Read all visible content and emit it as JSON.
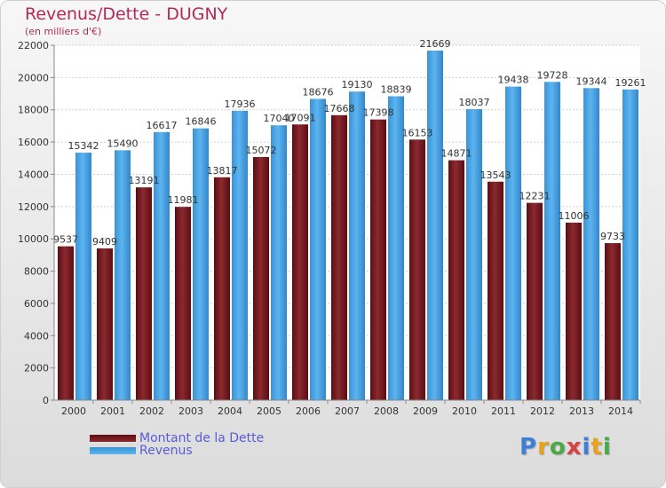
{
  "header": {
    "title": "Revenus/Dette - DUGNY",
    "subtitle": "(en milliers d'€)"
  },
  "logo": {
    "text": "Proxiti",
    "colors": [
      "#3d7fd6",
      "#e8a21c",
      "#4aa848",
      "#d94040",
      "#3d7fd6",
      "#e8a21c",
      "#4aa848"
    ]
  },
  "chart_data": {
    "type": "bar",
    "categories": [
      "2000",
      "2001",
      "2002",
      "2003",
      "2004",
      "2005",
      "2006",
      "2007",
      "2008",
      "2009",
      "2010",
      "2011",
      "2012",
      "2013",
      "2014"
    ],
    "series": [
      {
        "name": "Montant de la Dette",
        "color": "#7a1f24",
        "values": [
          9537,
          9409,
          13191,
          11981,
          13817,
          15072,
          17091,
          17668,
          17398,
          16153,
          14871,
          13543,
          12231,
          11006,
          9733
        ],
        "labels": [
          "9537",
          "9409",
          "13191",
          "11981",
          "13817",
          "15072",
          "17091",
          "17668",
          "17398",
          "16153",
          "14871",
          "13543",
          "12231",
          "11006",
          "9733"
        ]
      },
      {
        "name": "Revenus",
        "color": "#4aa6e6",
        "values": [
          15342,
          15490,
          16617,
          16846,
          17936,
          17040,
          18676,
          19130,
          18839,
          21669,
          18037,
          19438,
          19728,
          19344,
          19261
        ],
        "labels": [
          "15342",
          "15490",
          "16617",
          "16846",
          "17936",
          "17040",
          "18676",
          "19130",
          "18839",
          "21669",
          "18037",
          "19438",
          "19728",
          "19344",
          "19261"
        ]
      }
    ],
    "ylim": [
      0,
      22000
    ],
    "yticks": [
      "0",
      "2000",
      "4000",
      "6000",
      "8000",
      "10000",
      "12000",
      "14000",
      "16000",
      "18000",
      "20000",
      "22000"
    ],
    "grid": true,
    "legend_position": "bottom-left"
  }
}
